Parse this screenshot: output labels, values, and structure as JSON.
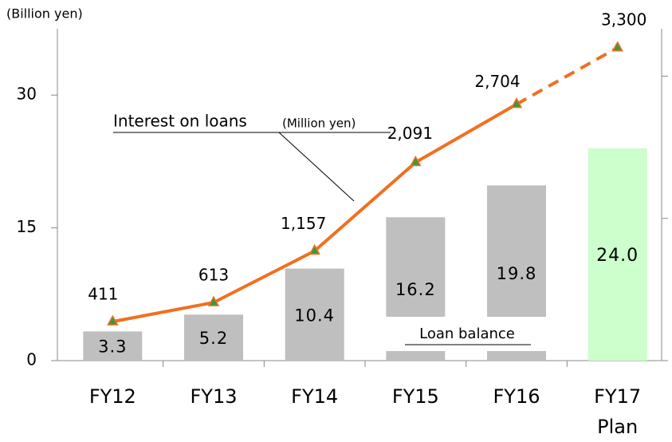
{
  "chart_data": {
    "type": "bar+line",
    "y_axis_label": "(Billion yen)",
    "categories": [
      "FY12",
      "FY13",
      "FY14",
      "FY15",
      "FY16",
      "FY17\nPlan"
    ],
    "ylim": [
      0,
      37.5
    ],
    "yticks": [
      0,
      15,
      30
    ],
    "y2lim": [
      0,
      3500
    ],
    "y2ticks": [
      1500,
      3000
    ],
    "series": [
      {
        "name": "Loan balance",
        "type": "bar",
        "color": "#bfbfbf",
        "highlight_color": "#ccffcc",
        "values": [
          3.3,
          5.2,
          10.4,
          16.2,
          19.8,
          24.0
        ],
        "value_labels": [
          "3.3",
          "5.2",
          "10.4",
          "16.2",
          "19.8",
          "24.0"
        ]
      },
      {
        "name": "Interest on loans",
        "unit": "(Million yen)",
        "type": "line",
        "axis": "y2",
        "color": "#f07020",
        "marker_color": "#3a9a3a",
        "values": [
          411,
          613,
          1157,
          2091,
          2704,
          3300
        ],
        "value_labels": [
          "411",
          "613",
          "1,157",
          "2,091",
          "2,704",
          "3,300"
        ]
      }
    ]
  }
}
